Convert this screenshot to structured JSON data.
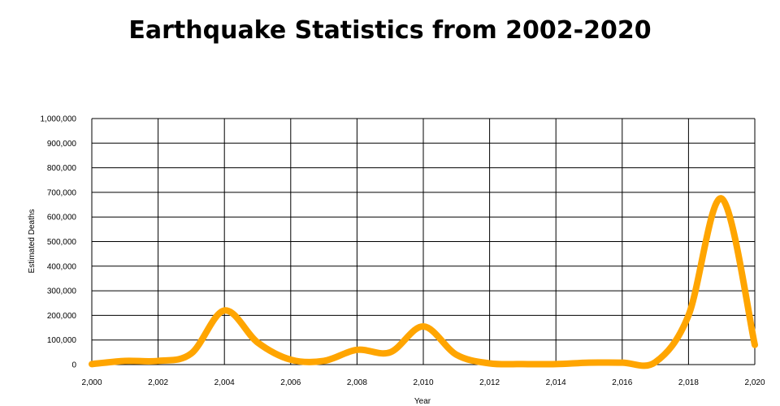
{
  "chart_data": {
    "type": "line",
    "title": "Earthquake Statistics from 2002-2020",
    "xlabel": "Year",
    "ylabel": "Estimated Deaths",
    "xlim": [
      2000,
      2020
    ],
    "ylim": [
      0,
      1000000
    ],
    "x_ticks": [
      "2,000",
      "2,002",
      "2,004",
      "2,006",
      "2,008",
      "2,010",
      "2,012",
      "2,014",
      "2,016",
      "2,018",
      "2,020"
    ],
    "y_ticks": [
      "0",
      "100,000",
      "200,000",
      "300,000",
      "400,000",
      "500,000",
      "600,000",
      "700,000",
      "800,000",
      "900,000",
      "1,000,000"
    ],
    "grid": true,
    "series": [
      {
        "color": "#FFA500",
        "x": [
          2000,
          2001,
          2002,
          2003,
          2004,
          2005,
          2006,
          2007,
          2008,
          2009,
          2010,
          2011,
          2012,
          2013,
          2014,
          2015,
          2016,
          2017,
          2018,
          2019,
          2020
        ],
        "y": [
          2000,
          15000,
          15000,
          45000,
          220000,
          90000,
          20000,
          15000,
          60000,
          50000,
          155000,
          40000,
          5000,
          2000,
          2000,
          8000,
          8000,
          10000,
          200000,
          675000,
          80000
        ]
      }
    ]
  }
}
